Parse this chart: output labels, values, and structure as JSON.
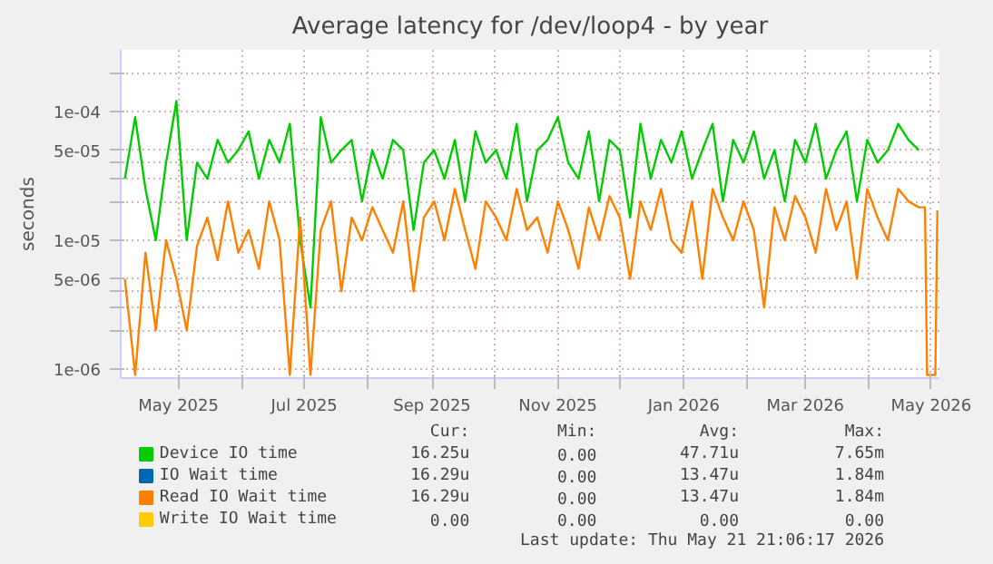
{
  "chart_data": {
    "type": "line",
    "title": "Average latency for /dev/loop4 - by year",
    "ylabel": "seconds",
    "log": "y",
    "grid": true,
    "legend": "bottom",
    "line_style": "solid",
    "marker": "none",
    "xlim": [
      "2025-04-03",
      "2026-05-05"
    ],
    "xticks": [
      {
        "value": "2025-05-01",
        "label": "May 2025"
      },
      {
        "value": "2025-06-01",
        "label": null
      },
      {
        "value": "2025-07-01",
        "label": "Jul 2025"
      },
      {
        "value": "2025-08-01",
        "label": null
      },
      {
        "value": "2025-09-01",
        "label": "Sep 2025"
      },
      {
        "value": "2025-10-01",
        "label": null
      },
      {
        "value": "2025-11-01",
        "label": "Nov 2025"
      },
      {
        "value": "2025-12-01",
        "label": null
      },
      {
        "value": "2026-01-01",
        "label": "Jan 2026"
      },
      {
        "value": "2026-02-01",
        "label": null
      },
      {
        "value": "2026-03-01",
        "label": "Mar 2026"
      },
      {
        "value": "2026-04-01",
        "label": null
      },
      {
        "value": "2026-05-01",
        "label": "May 2026"
      }
    ],
    "ylim": [
      8.5e-07,
      0.0003
    ],
    "yticks": [
      {
        "value": 1e-06,
        "label": "1e-06"
      },
      {
        "value": 2e-06,
        "label": null
      },
      {
        "value": 3e-06,
        "label": null
      },
      {
        "value": 4e-06,
        "label": null
      },
      {
        "value": 5e-06,
        "label": "5e-06"
      },
      {
        "value": 1e-05,
        "label": "1e-05"
      },
      {
        "value": 2e-05,
        "label": null
      },
      {
        "value": 3e-05,
        "label": null
      },
      {
        "value": 4e-05,
        "label": null
      },
      {
        "value": 5e-05,
        "label": "5e-05"
      },
      {
        "value": 0.0001,
        "label": "1e-04"
      },
      {
        "value": 0.0002,
        "label": null
      }
    ],
    "series": [
      {
        "name": "Device IO time",
        "color": "#00cc00",
        "x": [
          "2025-04-05",
          "2025-04-10",
          "2025-04-15",
          "2025-04-20",
          "2025-04-25",
          "2025-04-30",
          "2025-05-05",
          "2025-05-10",
          "2025-05-15",
          "2025-05-20",
          "2025-05-25",
          "2025-05-30",
          "2025-06-04",
          "2025-06-09",
          "2025-06-14",
          "2025-06-19",
          "2025-06-24",
          "2025-06-29",
          "2025-07-04",
          "2025-07-09",
          "2025-07-14",
          "2025-07-19",
          "2025-07-24",
          "2025-07-29",
          "2025-08-03",
          "2025-08-08",
          "2025-08-13",
          "2025-08-18",
          "2025-08-23",
          "2025-08-28",
          "2025-09-02",
          "2025-09-07",
          "2025-09-12",
          "2025-09-17",
          "2025-09-22",
          "2025-09-27",
          "2025-10-02",
          "2025-10-07",
          "2025-10-12",
          "2025-10-17",
          "2025-10-22",
          "2025-10-27",
          "2025-11-01",
          "2025-11-06",
          "2025-11-11",
          "2025-11-16",
          "2025-11-21",
          "2025-11-26",
          "2025-12-01",
          "2025-12-06",
          "2025-12-11",
          "2025-12-16",
          "2025-12-21",
          "2025-12-26",
          "2025-12-31",
          "2026-01-05",
          "2026-01-10",
          "2026-01-15",
          "2026-01-20",
          "2026-01-25",
          "2026-01-30",
          "2026-02-04",
          "2026-02-09",
          "2026-02-14",
          "2026-02-19",
          "2026-02-24",
          "2026-03-01",
          "2026-03-06",
          "2026-03-11",
          "2026-03-16",
          "2026-03-21",
          "2026-03-26",
          "2026-03-31",
          "2026-04-05",
          "2026-04-10",
          "2026-04-15",
          "2026-04-20",
          "2026-04-25"
        ],
        "values": [
          3e-05,
          9e-05,
          2.5e-05,
          1e-05,
          4e-05,
          0.00012,
          1e-05,
          4e-05,
          3e-05,
          6e-05,
          4e-05,
          5e-05,
          7e-05,
          3e-05,
          6e-05,
          4e-05,
          8e-05,
          1e-05,
          3e-06,
          9e-05,
          4e-05,
          5e-05,
          6e-05,
          2e-05,
          5e-05,
          3e-05,
          6e-05,
          5e-05,
          1.2e-05,
          4e-05,
          5e-05,
          3e-05,
          6e-05,
          2e-05,
          7e-05,
          4e-05,
          5e-05,
          3e-05,
          8e-05,
          2e-05,
          5e-05,
          6e-05,
          9e-05,
          4e-05,
          3e-05,
          7e-05,
          2e-05,
          6e-05,
          5e-05,
          1.5e-05,
          8e-05,
          3e-05,
          6e-05,
          4e-05,
          7e-05,
          3e-05,
          5e-05,
          8e-05,
          2e-05,
          6e-05,
          4e-05,
          7e-05,
          3e-05,
          5e-05,
          2e-05,
          6e-05,
          4e-05,
          8e-05,
          3e-05,
          5e-05,
          7e-05,
          2e-05,
          6e-05,
          4e-05,
          5e-05,
          8e-05,
          6e-05,
          5e-05
        ]
      },
      {
        "name": "IO Wait time",
        "color": "#0066b3"
      },
      {
        "name": "Read IO Wait time",
        "color": "#ff8000",
        "x": [
          "2025-04-05",
          "2025-04-10",
          "2025-04-15",
          "2025-04-20",
          "2025-04-25",
          "2025-04-30",
          "2025-05-05",
          "2025-05-10",
          "2025-05-15",
          "2025-05-20",
          "2025-05-25",
          "2025-05-30",
          "2025-06-04",
          "2025-06-09",
          "2025-06-14",
          "2025-06-19",
          "2025-06-24",
          "2025-06-29",
          "2025-07-04",
          "2025-07-09",
          "2025-07-14",
          "2025-07-19",
          "2025-07-24",
          "2025-07-29",
          "2025-08-03",
          "2025-08-08",
          "2025-08-13",
          "2025-08-18",
          "2025-08-23",
          "2025-08-28",
          "2025-09-02",
          "2025-09-07",
          "2025-09-12",
          "2025-09-17",
          "2025-09-22",
          "2025-09-27",
          "2025-10-02",
          "2025-10-07",
          "2025-10-12",
          "2025-10-17",
          "2025-10-22",
          "2025-10-27",
          "2025-11-01",
          "2025-11-06",
          "2025-11-11",
          "2025-11-16",
          "2025-11-21",
          "2025-11-26",
          "2025-12-01",
          "2025-12-06",
          "2025-12-11",
          "2025-12-16",
          "2025-12-21",
          "2025-12-26",
          "2025-12-31",
          "2026-01-05",
          "2026-01-10",
          "2026-01-15",
          "2026-01-20",
          "2026-01-25",
          "2026-01-30",
          "2026-02-04",
          "2026-02-09",
          "2026-02-14",
          "2026-02-19",
          "2026-02-24",
          "2026-03-01",
          "2026-03-06",
          "2026-03-11",
          "2026-03-16",
          "2026-03-21",
          "2026-03-26",
          "2026-03-31",
          "2026-04-05",
          "2026-04-10",
          "2026-04-15",
          "2026-04-20",
          "2026-04-25",
          "2026-04-28",
          "2026-04-29",
          "2026-05-03",
          "2026-05-04"
        ],
        "values": [
          5e-06,
          9e-07,
          8e-06,
          2e-06,
          1e-05,
          5e-06,
          2e-06,
          9e-06,
          1.5e-05,
          7e-06,
          2e-05,
          8e-06,
          1.2e-05,
          6e-06,
          2e-05,
          1e-05,
          9e-07,
          1.5e-05,
          9e-07,
          1.2e-05,
          2e-05,
          4e-06,
          1.5e-05,
          1e-05,
          1.8e-05,
          1.2e-05,
          8e-06,
          2e-05,
          4e-06,
          1.5e-05,
          2e-05,
          1e-05,
          2.5e-05,
          1.2e-05,
          6e-06,
          2e-05,
          1.5e-05,
          1e-05,
          2.5e-05,
          1.2e-05,
          1.5e-05,
          8e-06,
          2e-05,
          1.2e-05,
          6e-06,
          1.8e-05,
          1e-05,
          2.2e-05,
          1.5e-05,
          5e-06,
          2e-05,
          1.2e-05,
          2.5e-05,
          1e-05,
          8e-06,
          2e-05,
          5e-06,
          2.5e-05,
          1.5e-05,
          1e-05,
          2e-05,
          1.2e-05,
          3e-06,
          1.8e-05,
          1e-05,
          2.2e-05,
          1.5e-05,
          8e-06,
          2.5e-05,
          1.2e-05,
          2e-05,
          5e-06,
          2.5e-05,
          1.5e-05,
          1e-05,
          2.5e-05,
          2e-05,
          1.8e-05,
          1.8e-05,
          9e-07,
          9e-07,
          1.7e-05
        ]
      },
      {
        "name": "Write IO Wait time",
        "color": "#ffcc00"
      }
    ],
    "annotations": [
      "Cur:",
      "Min:",
      "Avg:",
      "Max:",
      "16.25u",
      "0.00",
      "47.71u",
      "7.65m",
      "16.29u",
      "0.00",
      "13.47u",
      "1.84m",
      "16.29u",
      "0.00",
      "13.47u",
      "1.84m",
      "0.00",
      "0.00",
      "0.00",
      "0.00",
      "Last update: Thu May 21 21:06:17 2026"
    ]
  }
}
